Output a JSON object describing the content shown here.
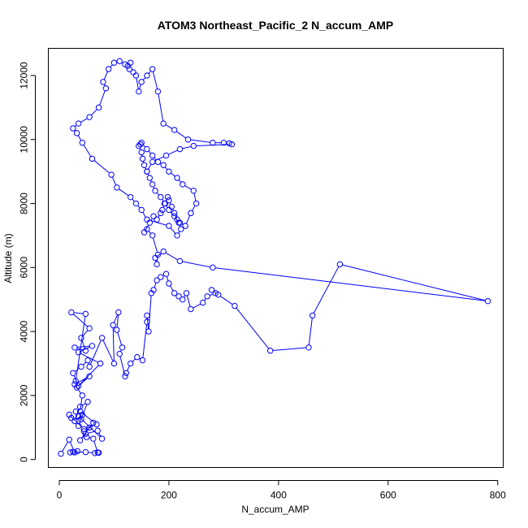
{
  "chart_data": {
    "type": "line",
    "title": "ATOM3 Northeast_Pacific_2 N_accum_AMP",
    "xlabel": "N_accum_AMP",
    "ylabel": "Altitude (m)",
    "xlim": [
      -20,
      810
    ],
    "ylim": [
      -250,
      12850
    ],
    "xticks": [
      0,
      200,
      400,
      600,
      800
    ],
    "yticks": [
      0,
      2000,
      4000,
      6000,
      8000,
      10000,
      12000
    ],
    "grid": false,
    "legend": "none",
    "marker": "open-circle",
    "color": "#0000ff",
    "series": [
      {
        "x": [
          3,
          18,
          28,
          33,
          25,
          20,
          48,
          65,
          72,
          70,
          62,
          50,
          45,
          55,
          62,
          38,
          48,
          70,
          78,
          35,
          30,
          42,
          28,
          38,
          52,
          35,
          40,
          22,
          18,
          45,
          68,
          38,
          42,
          28,
          55,
          32,
          75,
          35,
          60,
          28,
          48,
          40,
          55,
          22,
          48,
          30,
          35,
          25,
          40,
          52,
          55,
          78,
          100,
          98,
          108,
          105,
          115,
          110,
          120,
          122,
          130,
          142,
          152,
          160,
          160,
          163,
          168,
          172,
          178,
          185,
          195,
          200,
          210,
          218,
          225,
          232,
          240,
          262,
          270,
          285,
          278,
          290,
          320,
          385,
          455,
          462,
          512,
          782,
          280,
          220,
          190,
          175,
          178,
          180,
          170,
          160,
          155,
          165,
          172,
          178,
          185,
          188,
          192,
          198,
          200,
          205,
          210,
          215,
          220,
          230,
          240,
          250,
          245,
          225,
          215,
          200,
          190,
          180,
          170,
          160,
          150,
          148,
          145,
          150,
          152,
          155,
          160,
          165,
          170,
          175,
          185,
          193,
          200,
          210,
          218,
          222,
          215,
          200,
          160,
          150,
          140,
          130,
          105,
          95,
          60,
          42,
          32,
          25,
          35,
          55,
          72,
          85,
          80,
          90,
          100,
          110,
          120,
          125,
          130,
          128,
          135,
          140,
          145,
          150,
          160,
          170,
          180,
          190,
          210,
          235,
          280,
          300,
          310,
          315,
          245,
          220,
          195,
          170,
          160
        ],
        "y": [
          180,
          620,
          220,
          260,
          240,
          220,
          230,
          200,
          210,
          220,
          650,
          700,
          880,
          1000,
          1150,
          600,
          800,
          900,
          650,
          1350,
          1500,
          1400,
          1200,
          1650,
          1800,
          1050,
          1250,
          1300,
          1400,
          950,
          1100,
          1500,
          2000,
          2350,
          2600,
          2250,
          3000,
          3350,
          3550,
          3500,
          3400,
          3800,
          4100,
          4600,
          4550,
          2450,
          2300,
          2700,
          2900,
          3100,
          2900,
          3800,
          3000,
          4200,
          4600,
          4050,
          3500,
          3300,
          2600,
          2700,
          3000,
          3200,
          3100,
          4300,
          4500,
          4000,
          5200,
          5300,
          5600,
          5700,
          5800,
          5500,
          5200,
          5100,
          5000,
          5200,
          4700,
          4900,
          5100,
          5200,
          5300,
          5150,
          4800,
          3400,
          3500,
          4500,
          6100,
          4950,
          6000,
          6200,
          6500,
          6300,
          6100,
          6400,
          7000,
          7200,
          7100,
          7400,
          7600,
          7500,
          7700,
          7800,
          8000,
          8200,
          8100,
          7900,
          7700,
          7500,
          7400,
          7300,
          7700,
          8000,
          8400,
          8600,
          8800,
          9000,
          9200,
          9300,
          9500,
          9700,
          9900,
          9850,
          9800,
          9600,
          9400,
          9200,
          9000,
          8800,
          8600,
          8400,
          8200,
          8000,
          7800,
          7600,
          7400,
          7200,
          7000,
          7300,
          7500,
          7800,
          8000,
          8200,
          8500,
          8900,
          9400,
          9900,
          10200,
          10350,
          10500,
          10700,
          11000,
          11600,
          11800,
          12200,
          12400,
          12450,
          12350,
          12300,
          12400,
          12200,
          12100,
          12000,
          11500,
          11800,
          12000,
          12200,
          11500,
          10500,
          10300,
          10000,
          9900,
          9900,
          9880,
          9850,
          9800,
          9700,
          9500,
          9300,
          9000
        ]
      }
    ]
  }
}
